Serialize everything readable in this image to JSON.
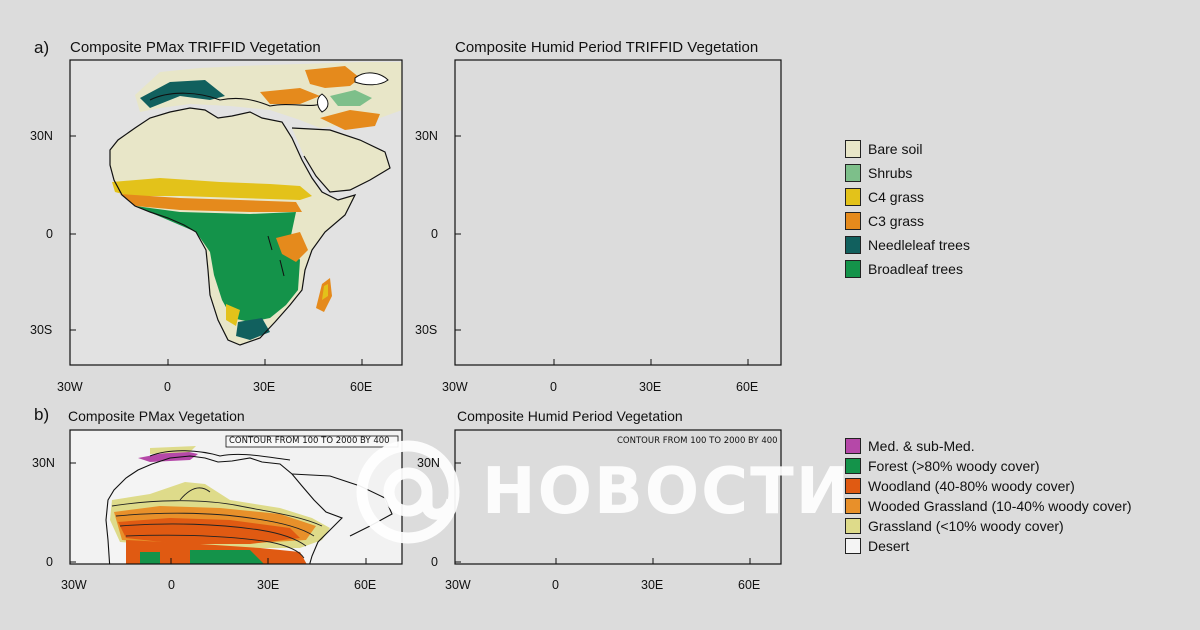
{
  "panel_a": {
    "letter": "a)",
    "map_left_title": "Composite PMax TRIFFID Vegetation",
    "map_right_title": "Composite Humid Period TRIFFID Vegetation",
    "lat_ticks": [
      "30N",
      "0",
      "30S"
    ],
    "lon_ticks": [
      "30W",
      "0",
      "30E",
      "60E"
    ],
    "legend": [
      {
        "label": "Bare soil",
        "color": "#e8e6c8"
      },
      {
        "label": "Shrubs",
        "color": "#7dbf8a"
      },
      {
        "label": "C4 grass",
        "color": "#e3c21a"
      },
      {
        "label": "C3 grass",
        "color": "#e58a1c"
      },
      {
        "label": "Needleleaf trees",
        "color": "#11605e"
      },
      {
        "label": "Broadleaf trees",
        "color": "#14934a"
      }
    ]
  },
  "panel_b": {
    "letter": "b)",
    "map_left_title": "Composite PMax Vegetation",
    "map_right_title": "Composite Humid Period Vegetation",
    "contour_note": "CONTOUR FROM 100 TO 2000 BY 400",
    "lat_ticks": [
      "30N",
      "0"
    ],
    "lon_ticks": [
      "30W",
      "0",
      "30E",
      "60E"
    ],
    "legend": [
      {
        "label": "Med. & sub-Med.",
        "color": "#b548a8"
      },
      {
        "label": "Forest (>80% woody cover)",
        "color": "#14934a"
      },
      {
        "label": "Woodland (40-80% woody cover)",
        "color": "#e05a12"
      },
      {
        "label": "Wooded Grassland (10-40% woody cover)",
        "color": "#e8902a"
      },
      {
        "label": "Grassland (<10% woody cover)",
        "color": "#dedb8a"
      },
      {
        "label": "Desert",
        "color": "#f4f4f4"
      }
    ]
  },
  "watermark": {
    "symbol": "@",
    "text": "НОВОСТИ"
  }
}
